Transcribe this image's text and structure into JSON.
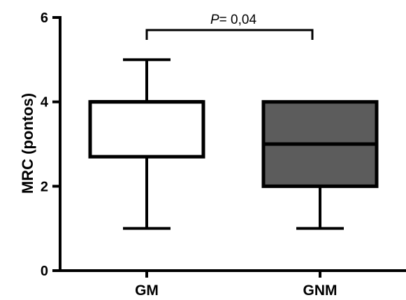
{
  "chart_data": {
    "type": "box",
    "xlabel": "",
    "ylabel": "MRC (pontos)",
    "ylim": [
      0,
      6
    ],
    "yticks": [
      0,
      2,
      4,
      6
    ],
    "grid": false,
    "categories": [
      "GM",
      "GNM"
    ],
    "boxes": [
      {
        "category": "GM",
        "min": 1,
        "q1": 2.7,
        "median": 4,
        "q3": 4,
        "max": 5,
        "fill": "#ffffff"
      },
      {
        "category": "GNM",
        "min": 1,
        "q1": 2,
        "median": 3,
        "q3": 4,
        "max": 4,
        "fill": "#5c5c5c"
      }
    ],
    "annotation": {
      "label_italic": "P",
      "label_rest": "= 0,04",
      "between": [
        "GM",
        "GNM"
      ]
    }
  }
}
